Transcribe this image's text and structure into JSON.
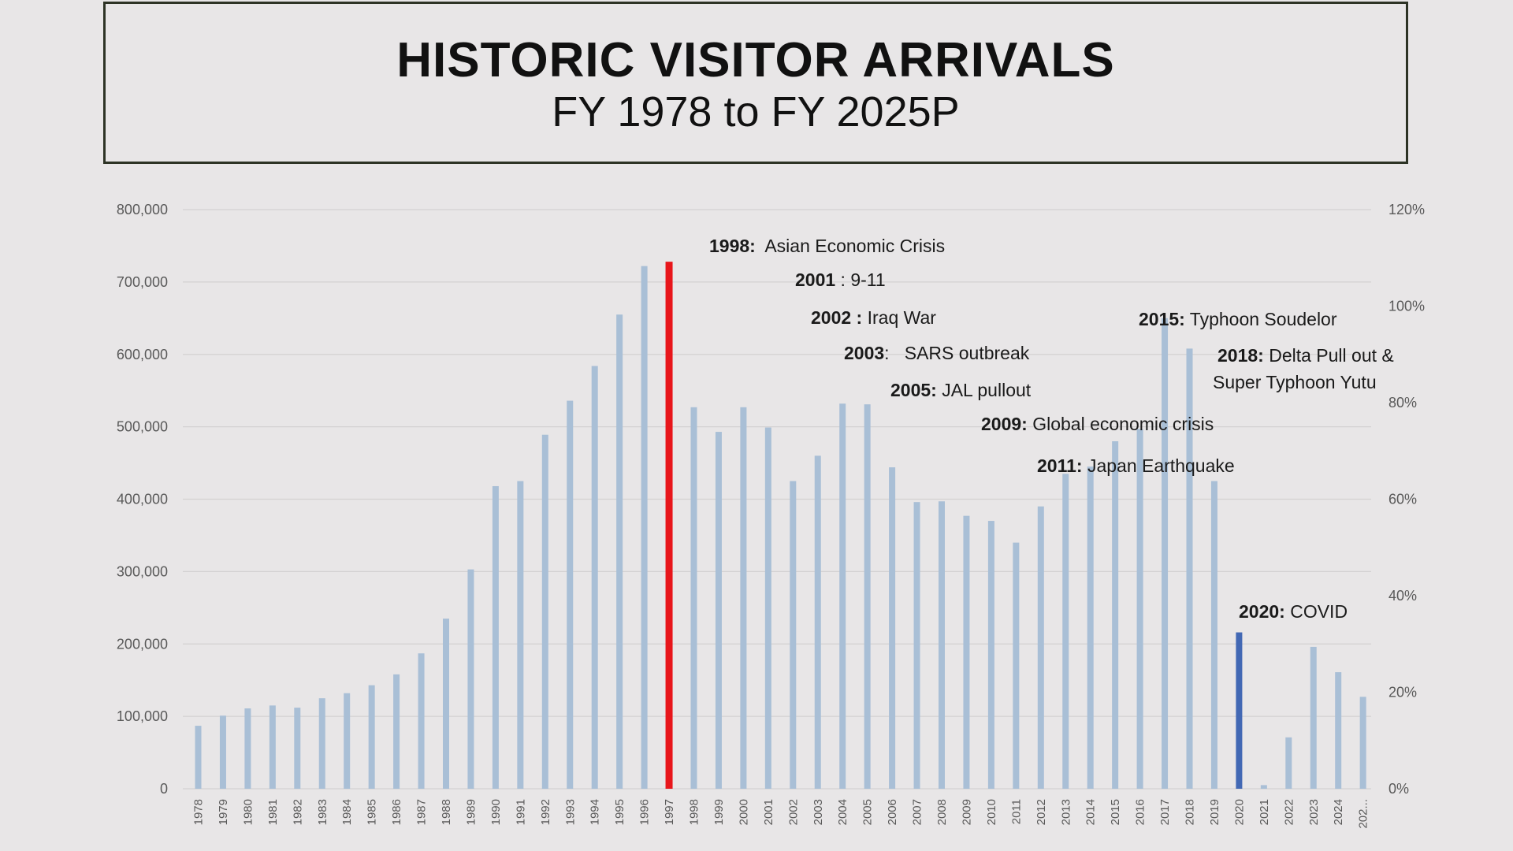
{
  "header": {
    "title": "HISTORIC VISITOR ARRIVALS",
    "subtitle": "FY 1978 to FY 2025P"
  },
  "chart_data": {
    "type": "bar",
    "categories": [
      "1978",
      "1979",
      "1980",
      "1981",
      "1982",
      "1983",
      "1984",
      "1985",
      "1986",
      "1987",
      "1988",
      "1989",
      "1990",
      "1991",
      "1992",
      "1993",
      "1994",
      "1995",
      "1996",
      "1997",
      "1998",
      "1999",
      "2000",
      "2001",
      "2002",
      "2003",
      "2004",
      "2005",
      "2006",
      "2007",
      "2008",
      "2009",
      "2010",
      "2011",
      "2012",
      "2013",
      "2014",
      "2015",
      "2016",
      "2017",
      "2018",
      "2019",
      "2020",
      "2021",
      "2022",
      "2023",
      "2024",
      "202..."
    ],
    "series": [
      {
        "values": [
          87000,
          101000,
          111000,
          115000,
          112000,
          125000,
          132000,
          143000,
          158000,
          187000,
          235000,
          303000,
          418000,
          425000,
          489000,
          536000,
          584000,
          655000,
          722000,
          728000,
          527000,
          493000,
          527000,
          499000,
          425000,
          460000,
          532000,
          531000,
          444000,
          396000,
          397000,
          377000,
          370000,
          340000,
          390000,
          435000,
          445000,
          480000,
          497000,
          650000,
          608000,
          425000,
          216000,
          5000,
          71000,
          196000,
          161000,
          127000
        ]
      }
    ],
    "highlights": [
      {
        "category": "1997",
        "color": "#e8161b"
      },
      {
        "category": "2020",
        "color": "#4268b4"
      }
    ],
    "bar_color": "#a9bfd6",
    "ylim": [
      0,
      800000
    ],
    "yticks": [
      "0",
      "100,000",
      "200,000",
      "300,000",
      "400,000",
      "500,000",
      "600,000",
      "700,000",
      "800,000"
    ],
    "y2ticks": [
      "0%",
      "20%",
      "40%",
      "60%",
      "80%",
      "100%",
      "120%"
    ],
    "grid": true,
    "annotations": [
      {
        "year": "1998:",
        "text": "  Asian Economic Crisis"
      },
      {
        "year": "2001",
        "text": " : 9-11"
      },
      {
        "year": "2002 :",
        "text": " Iraq War"
      },
      {
        "year": "2003",
        "text": ":   SARS outbreak"
      },
      {
        "year": "2005:",
        "text": " JAL pullout"
      },
      {
        "year": "2009:",
        "text": " Global economic crisis"
      },
      {
        "year": "2011:",
        "text": " Japan Earthquake"
      },
      {
        "year": "2015:",
        "text": " Typhoon Soudelor"
      },
      {
        "year": "2018:",
        "text": " Delta Pull out &"
      },
      {
        "year": "",
        "text": "Super Typhoon Yutu"
      },
      {
        "year": "2020:",
        "text": " COVID"
      }
    ]
  }
}
